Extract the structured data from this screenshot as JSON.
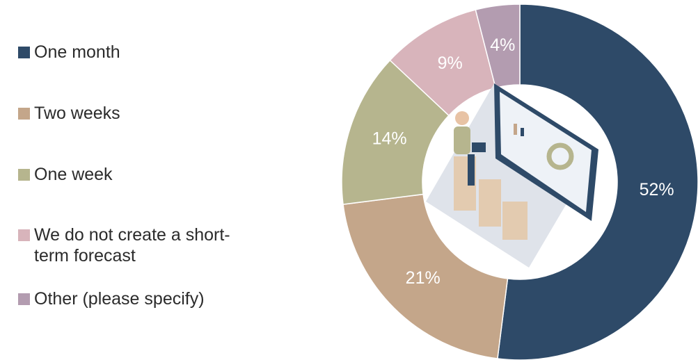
{
  "chart_data": {
    "type": "donut",
    "categories": [
      "One month",
      "Two weeks",
      "One week",
      "We do not create a short-term forecast",
      "Other (please specify)"
    ],
    "values": [
      52,
      21,
      14,
      9,
      4
    ],
    "value_labels": [
      "52%",
      "21%",
      "14%",
      "9%",
      "4%"
    ],
    "colors": [
      "#2e4a68",
      "#c4a68a",
      "#b6b58e",
      "#d8b4bb",
      "#b39cb0"
    ],
    "legend": "left"
  }
}
